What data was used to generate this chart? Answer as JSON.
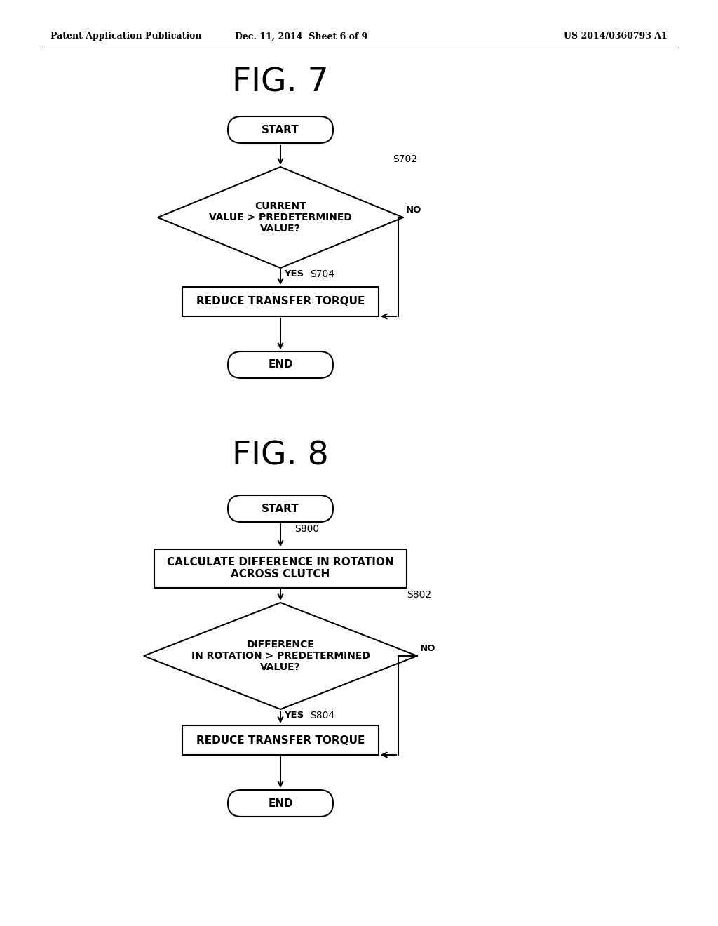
{
  "bg_color": "#ffffff",
  "text_color": "#000000",
  "header_left": "Patent Application Publication",
  "header_center": "Dec. 11, 2014  Sheet 6 of 9",
  "header_right": "US 2014/0360793 A1",
  "fig7_title": "FIG. 7",
  "fig8_title": "FIG. 8",
  "fig7": {
    "start_label": "START",
    "diamond1_label": "CURRENT\nVALUE > PREDETERMINED\nVALUE?",
    "diamond1_step": "S702",
    "yes_label": "YES",
    "no_label": "NO",
    "rect1_label": "REDUCE TRANSFER TORQUE",
    "rect1_step": "S704",
    "end_label": "END"
  },
  "fig8": {
    "start_label": "START",
    "rect1_label": "CALCULATE DIFFERENCE IN ROTATION\nACROSS CLUTCH",
    "rect1_step": "S800",
    "diamond1_label": "DIFFERENCE\nIN ROTATION > PREDETERMINED\nVALUE?",
    "diamond1_step": "S802",
    "yes_label": "YES",
    "no_label": "NO",
    "rect2_label": "REDUCE TRANSFER TORQUE",
    "rect2_step": "S804",
    "end_label": "END"
  }
}
